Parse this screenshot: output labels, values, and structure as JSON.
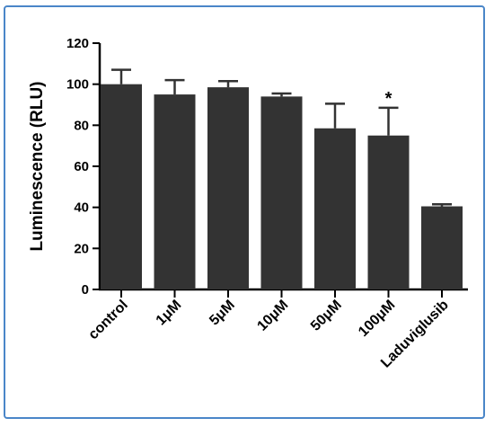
{
  "chart_data": {
    "type": "bar",
    "categories": [
      "control",
      "1μM",
      "5μM",
      "10μM",
      "50μM",
      "100μM",
      "Laduviglusib"
    ],
    "values": [
      100,
      95,
      98.5,
      94,
      78.5,
      75,
      40.5
    ],
    "error_upper": [
      107,
      102,
      101.5,
      95.5,
      90.5,
      88.5,
      41.5
    ],
    "annotations": [
      {
        "category": "100μM",
        "text": "*"
      }
    ],
    "ylabel": "Luminescence (RLU)",
    "xlabel": "",
    "ylim": [
      0,
      120
    ],
    "yticks": [
      0,
      20,
      40,
      60,
      80,
      100,
      120
    ],
    "grid": false,
    "bar_color": "#333333"
  }
}
